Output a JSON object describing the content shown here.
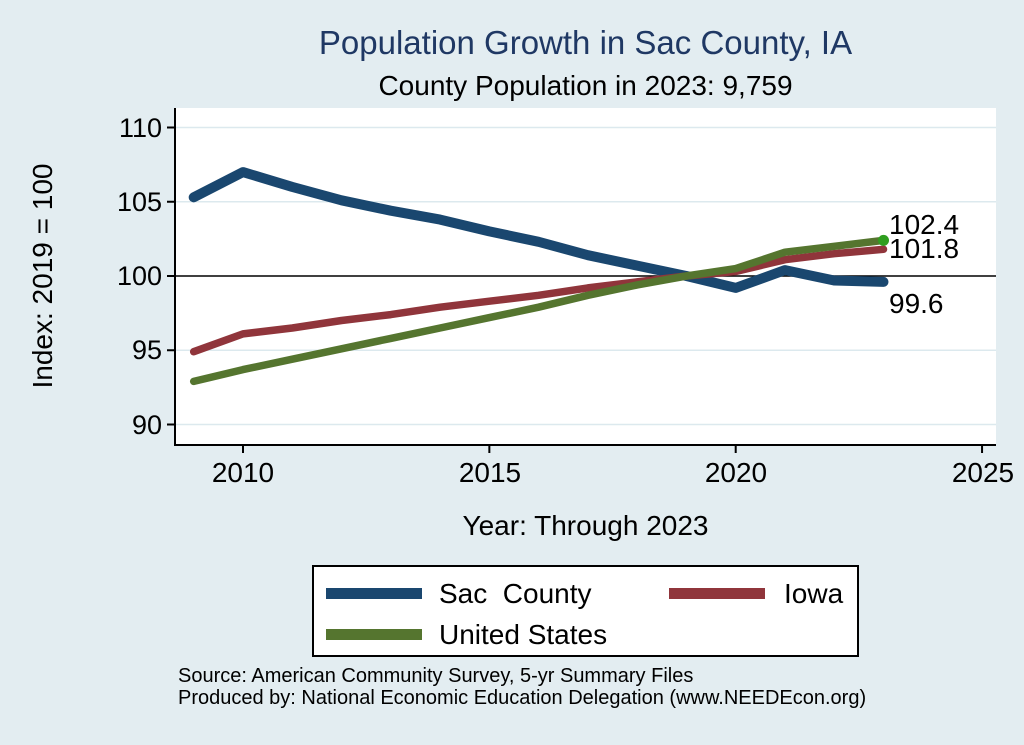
{
  "header": {
    "title": "Population Growth in Sac County, IA",
    "subtitle": "County Population in 2023: 9,759"
  },
  "chart_data": {
    "type": "line",
    "title": "Population Growth in Sac County, IA",
    "subtitle": "County Population in 2023: 9,759",
    "xlabel": "Year: Through 2023",
    "ylabel": "Index: 2019 = 100",
    "x": [
      2009,
      2010,
      2011,
      2012,
      2013,
      2014,
      2015,
      2016,
      2017,
      2018,
      2019,
      2020,
      2021,
      2022,
      2023
    ],
    "series": [
      {
        "name": "Sac County",
        "color": "#1a476f",
        "line_width": 10,
        "values": [
          105.3,
          107.0,
          106.0,
          105.1,
          104.4,
          103.8,
          103.0,
          102.3,
          101.4,
          100.7,
          100.0,
          99.2,
          100.4,
          99.7,
          99.6
        ],
        "end_label": "99.6"
      },
      {
        "name": "Iowa",
        "color": "#90353b",
        "line_width": 7.5,
        "values": [
          94.9,
          96.1,
          96.5,
          97.0,
          97.4,
          97.9,
          98.3,
          98.7,
          99.2,
          99.6,
          100.0,
          100.3,
          101.1,
          101.5,
          101.8
        ],
        "end_label": "101.8"
      },
      {
        "name": "United States",
        "color": "#55752f",
        "line_width": 7.5,
        "values": [
          92.9,
          93.7,
          94.4,
          95.1,
          95.8,
          96.5,
          97.2,
          97.9,
          98.7,
          99.4,
          100.0,
          100.5,
          101.6,
          102.0,
          102.4
        ],
        "end_label": "102.4",
        "end_marker_color": "#2f9e1f"
      }
    ],
    "x_ticks": [
      2010,
      2015,
      2020,
      2025
    ],
    "x_tick_labels": [
      "2010",
      "2015",
      "2020",
      "2025"
    ],
    "y_ticks": [
      110,
      105,
      100,
      95,
      90
    ],
    "y_tick_labels": [
      "110",
      "105",
      "100",
      "95",
      "90"
    ],
    "xlim": [
      2008.6,
      2025.3
    ],
    "ylim": [
      88.6,
      111.3
    ],
    "reference_line": 100,
    "grid": true,
    "legend_position": "bottom",
    "end_labels": [
      "102.4",
      "101.8",
      "99.6"
    ]
  },
  "legend": {
    "items": [
      {
        "label": "Sac  County",
        "color": "#1a476f"
      },
      {
        "label": "Iowa",
        "color": "#90353b"
      },
      {
        "label": "United States",
        "color": "#55752f"
      }
    ]
  },
  "footer": {
    "source_line": "Source: American Community Survey, 5-yr Summary Files",
    "produced_line": "Produced by: National Economic Education Delegation (www.NEEDEcon.org)"
  },
  "colors": {
    "background": "#e3edf1",
    "plot_background": "#ffffff",
    "gridline": "#dce9ee",
    "axis": "#000000",
    "title": "#1f3864",
    "sac_county": "#1a476f",
    "iowa": "#90353b",
    "united_states": "#55752f",
    "end_marker": "#2f9e1f"
  }
}
